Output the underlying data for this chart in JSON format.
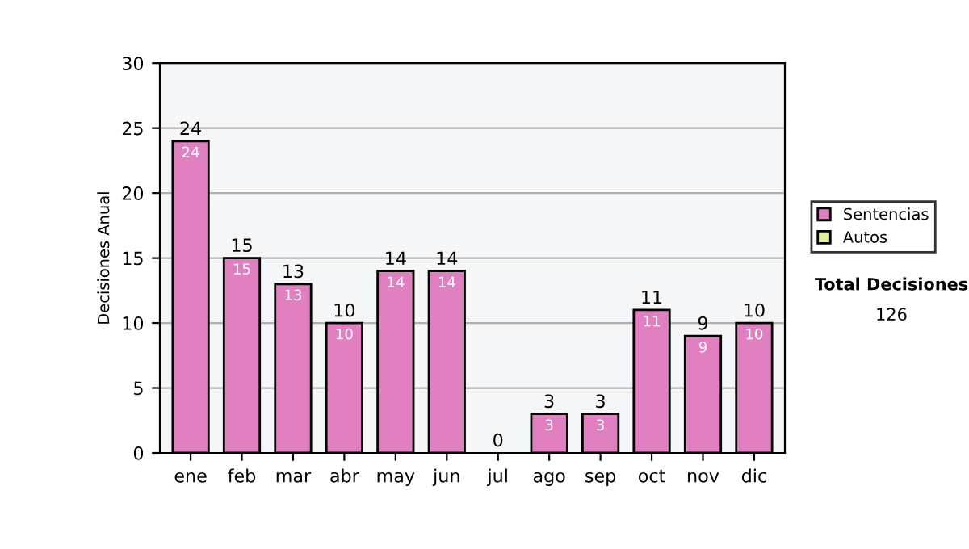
{
  "chart_data": {
    "type": "bar",
    "ylabel": "Decisiones Anual",
    "categories": [
      "ene",
      "feb",
      "mar",
      "abr",
      "may",
      "jun",
      "jul",
      "ago",
      "sep",
      "oct",
      "nov",
      "dic"
    ],
    "series": [
      {
        "name": "Sentencias",
        "color": "#e080c0",
        "values": [
          24,
          15,
          13,
          10,
          14,
          14,
          0,
          3,
          3,
          11,
          9,
          10
        ],
        "value_labels": [
          "24",
          "15",
          "13",
          "10",
          "14",
          "14",
          null,
          "3",
          "3",
          "11",
          "9",
          "10"
        ]
      },
      {
        "name": "Autos",
        "color": "#e0f0a0",
        "values": [
          0,
          0,
          0,
          0,
          0,
          0,
          0,
          0,
          0,
          0,
          0,
          0
        ]
      }
    ],
    "stacked": true,
    "totals": [
      "24",
      "15",
      "13",
      "10",
      "14",
      "14",
      "0",
      "3",
      "3",
      "11",
      "9",
      "10"
    ],
    "ylim": [
      0,
      30
    ],
    "yticks": [
      0,
      5,
      10,
      15,
      20,
      25,
      30
    ],
    "grid": "y",
    "legend": "right",
    "annotations": [
      "Total Decisiones",
      "126"
    ]
  }
}
